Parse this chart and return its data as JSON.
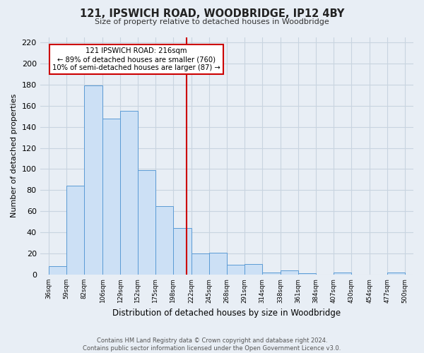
{
  "title": "121, IPSWICH ROAD, WOODBRIDGE, IP12 4BY",
  "subtitle": "Size of property relative to detached houses in Woodbridge",
  "xlabel": "Distribution of detached houses by size in Woodbridge",
  "ylabel": "Number of detached properties",
  "footer_line1": "Contains HM Land Registry data © Crown copyright and database right 2024.",
  "footer_line2": "Contains public sector information licensed under the Open Government Licence v3.0.",
  "bin_labels": [
    "36sqm",
    "59sqm",
    "82sqm",
    "106sqm",
    "129sqm",
    "152sqm",
    "175sqm",
    "198sqm",
    "222sqm",
    "245sqm",
    "268sqm",
    "291sqm",
    "314sqm",
    "338sqm",
    "361sqm",
    "384sqm",
    "407sqm",
    "430sqm",
    "454sqm",
    "477sqm",
    "500sqm"
  ],
  "bin_edges": [
    36,
    59,
    82,
    106,
    129,
    152,
    175,
    198,
    222,
    245,
    268,
    291,
    314,
    338,
    361,
    384,
    407,
    430,
    454,
    477,
    500
  ],
  "bar_heights": [
    8,
    84,
    179,
    148,
    155,
    99,
    65,
    44,
    20,
    21,
    9,
    10,
    2,
    4,
    1,
    0,
    2,
    0,
    0,
    2
  ],
  "bar_color": "#cce0f5",
  "bar_edge_color": "#5b9bd5",
  "property_size": 216,
  "vline_color": "#cc0000",
  "annotation_title": "121 IPSWICH ROAD: 216sqm",
  "annotation_line2": "← 89% of detached houses are smaller (760)",
  "annotation_line3": "10% of semi-detached houses are larger (87) →",
  "annotation_box_edge": "#cc0000",
  "annotation_box_face": "#ffffff",
  "ylim": [
    0,
    225
  ],
  "yticks": [
    0,
    20,
    40,
    60,
    80,
    100,
    120,
    140,
    160,
    180,
    200,
    220
  ],
  "grid_color": "#c8d4e0",
  "background_color": "#e8eef5",
  "plot_background": "#e8eef5"
}
